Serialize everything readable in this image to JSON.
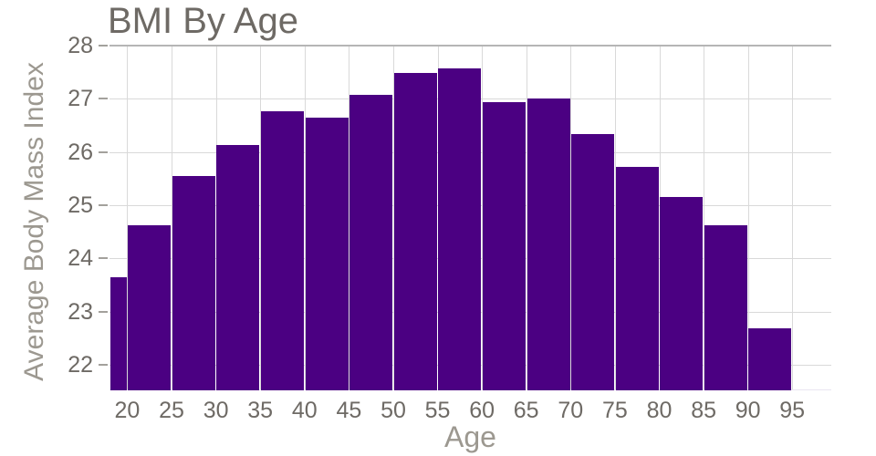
{
  "chart_data": {
    "type": "bar",
    "title": "BMI By Age",
    "xlabel": "Age",
    "ylabel": "Average Body Mass Index",
    "xlim": [
      18,
      99.4
    ],
    "ylim": [
      21.52,
      28
    ],
    "x_ticks": [
      20,
      25,
      30,
      35,
      40,
      45,
      50,
      55,
      60,
      65,
      70,
      75,
      80,
      85,
      90,
      95
    ],
    "y_ticks": [
      22,
      23,
      24,
      25,
      26,
      27,
      28
    ],
    "grid": "on",
    "legend": "none",
    "bins": [
      {
        "x0": 18,
        "x1": 20,
        "value": 23.65
      },
      {
        "x0": 20,
        "x1": 25,
        "value": 24.63
      },
      {
        "x0": 25,
        "x1": 30,
        "value": 25.55
      },
      {
        "x0": 30,
        "x1": 35,
        "value": 26.13
      },
      {
        "x0": 35,
        "x1": 40,
        "value": 26.76
      },
      {
        "x0": 40,
        "x1": 45,
        "value": 26.64
      },
      {
        "x0": 45,
        "x1": 50,
        "value": 27.08
      },
      {
        "x0": 50,
        "x1": 55,
        "value": 27.49
      },
      {
        "x0": 55,
        "x1": 60,
        "value": 27.57
      },
      {
        "x0": 60,
        "x1": 65,
        "value": 26.93
      },
      {
        "x0": 65,
        "x1": 70,
        "value": 27.01
      },
      {
        "x0": 70,
        "x1": 75,
        "value": 26.34
      },
      {
        "x0": 75,
        "x1": 80,
        "value": 25.72
      },
      {
        "x0": 80,
        "x1": 85,
        "value": 25.15
      },
      {
        "x0": 85,
        "x1": 90,
        "value": 24.63
      },
      {
        "x0": 90,
        "x1": 95,
        "value": 22.68
      }
    ],
    "colors": {
      "bar": "#4B0082",
      "gridline": "#d9d9d9",
      "top_gridline": "#b5b5b5",
      "baseline": "#e9e5f1",
      "title_text": "#6e6a65",
      "tick_text": "#6e6a65",
      "axis_title_text": "#9c9890",
      "tick_mark": "#a3a19c",
      "background": "#ffffff"
    }
  }
}
